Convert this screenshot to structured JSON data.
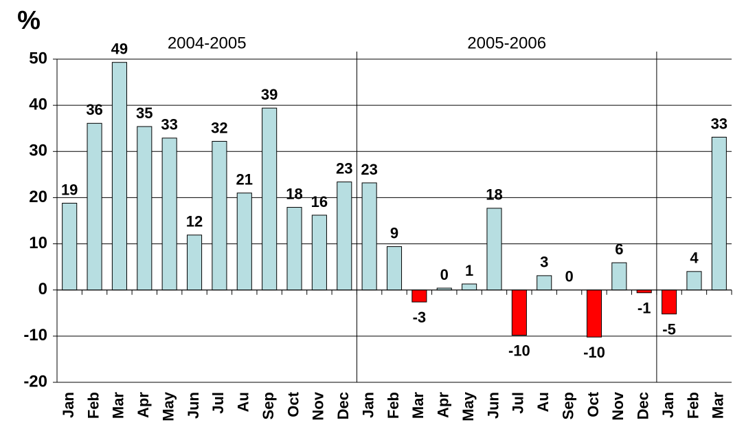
{
  "chart_data": {
    "type": "bar",
    "y_unit": "%",
    "categories": [
      "Jan",
      "Feb",
      "Mar",
      "Apr",
      "May",
      "Jun",
      "Jul",
      "Au",
      "Sep",
      "Oct",
      "Nov",
      "Dec",
      "Jan",
      "Feb",
      "Mar",
      "Apr",
      "May",
      "Jun",
      "Jul",
      "Au",
      "Sep",
      "Oct",
      "Nov",
      "Dec",
      "Jan",
      "Feb",
      "Mar"
    ],
    "values": [
      18.8,
      36.1,
      49.3,
      35.4,
      32.9,
      11.9,
      32.2,
      21.0,
      39.4,
      17.9,
      16.2,
      23.4,
      23.2,
      9.4,
      -2.6,
      0.4,
      1.3,
      17.7,
      -9.8,
      3.1,
      0,
      -10.2,
      5.9,
      -0.6,
      -5.2,
      4.0,
      33.1
    ],
    "value_labels": [
      "19",
      "36",
      "49",
      "35",
      "33",
      "12",
      "32",
      "21",
      "39",
      "18",
      "16",
      "23",
      "23",
      "9",
      "-3",
      "0",
      "1",
      "18",
      "-10",
      "3",
      "0",
      "-10",
      "6",
      "-1",
      "-5",
      "4",
      "33"
    ],
    "colors": {
      "positive": "#b7dee1",
      "negative": "#ff0000"
    },
    "groups": [
      {
        "label": "2004-2005",
        "count": 12
      },
      {
        "label": "2005-2006",
        "count": 12
      },
      {
        "label": null,
        "count": 3
      }
    ],
    "ylim": [
      -20,
      50
    ],
    "yticks": [
      -20,
      -10,
      0,
      10,
      20,
      30,
      40,
      50
    ],
    "grid": true
  }
}
